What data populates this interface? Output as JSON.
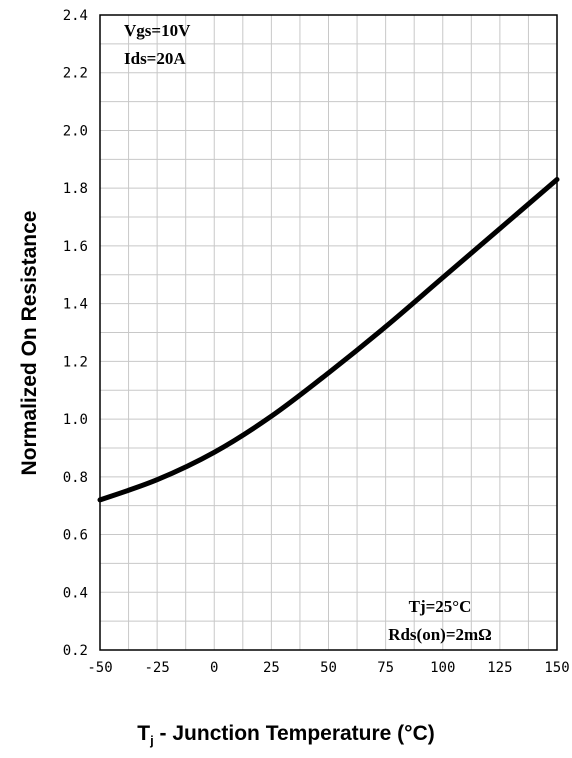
{
  "chart_data": {
    "type": "line",
    "xlabel_main": "T",
    "xlabel_sub": "j",
    "xlabel_rest": " - Junction Temperature (°C)",
    "ylabel": "Normalized On Resistance",
    "xlim": [
      -50,
      150
    ],
    "ylim": [
      0.2,
      2.4
    ],
    "xticks": [
      "-50",
      "-25",
      "0",
      "25",
      "50",
      "75",
      "100",
      "125",
      "150"
    ],
    "yticks": [
      "0.2",
      "0.4",
      "0.6",
      "0.8",
      "1.0",
      "1.2",
      "1.4",
      "1.6",
      "1.8",
      "2.0",
      "2.2",
      "2.4"
    ],
    "grid": true,
    "annotations_top_left": [
      "Vgs=10V",
      "Ids=20A"
    ],
    "annotations_bottom_right": [
      "Tj=25°C",
      "Rds(on)=2mΩ"
    ],
    "series": [
      {
        "x": [
          -50,
          -25,
          0,
          25,
          50,
          75,
          100,
          125,
          150
        ],
        "y": [
          0.72,
          0.79,
          0.885,
          1.01,
          1.16,
          1.32,
          1.49,
          1.66,
          1.83
        ]
      }
    ]
  }
}
